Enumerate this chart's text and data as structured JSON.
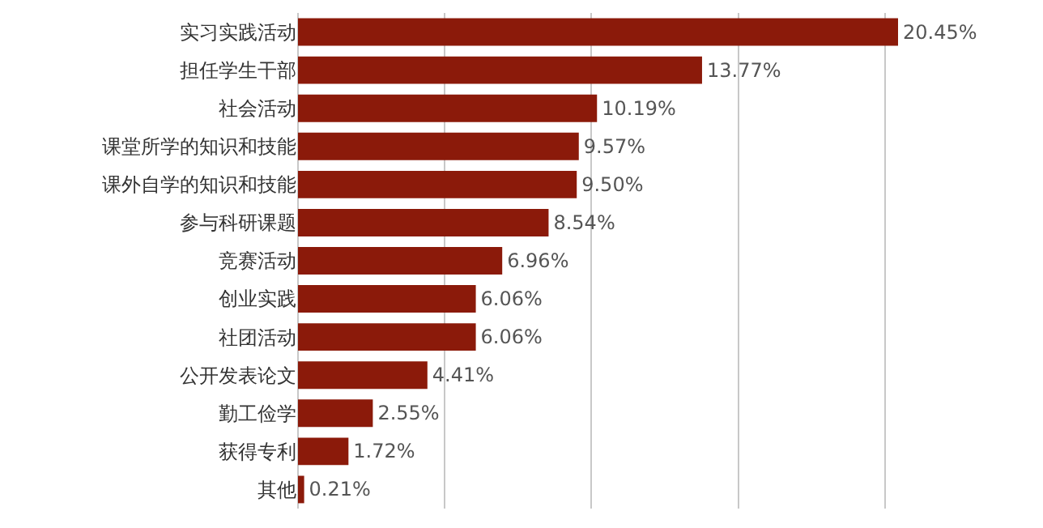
{
  "chart_data": {
    "type": "bar",
    "orientation": "horizontal",
    "categories": [
      "实习实践活动",
      "担任学生干部",
      "社会活动",
      "课堂所学的知识和技能",
      "课外自学的知识和技能",
      "参与科研课题",
      "竞赛活动",
      "创业实践",
      "社团活动",
      "公开发表论文",
      "勤工俭学",
      "获得专利",
      "其他"
    ],
    "values": [
      20.45,
      13.77,
      10.19,
      9.57,
      9.5,
      8.54,
      6.96,
      6.06,
      6.06,
      4.41,
      2.55,
      1.72,
      0.21
    ],
    "value_labels": [
      "20.45%",
      "13.77%",
      "10.19%",
      "9.57%",
      "9.50%",
      "8.54%",
      "6.96%",
      "6.06%",
      "6.06%",
      "4.41%",
      "2.55%",
      "1.72%",
      "0.21%"
    ],
    "color": "#8b1a0a",
    "grid": "x",
    "tick_labels": "y"
  }
}
